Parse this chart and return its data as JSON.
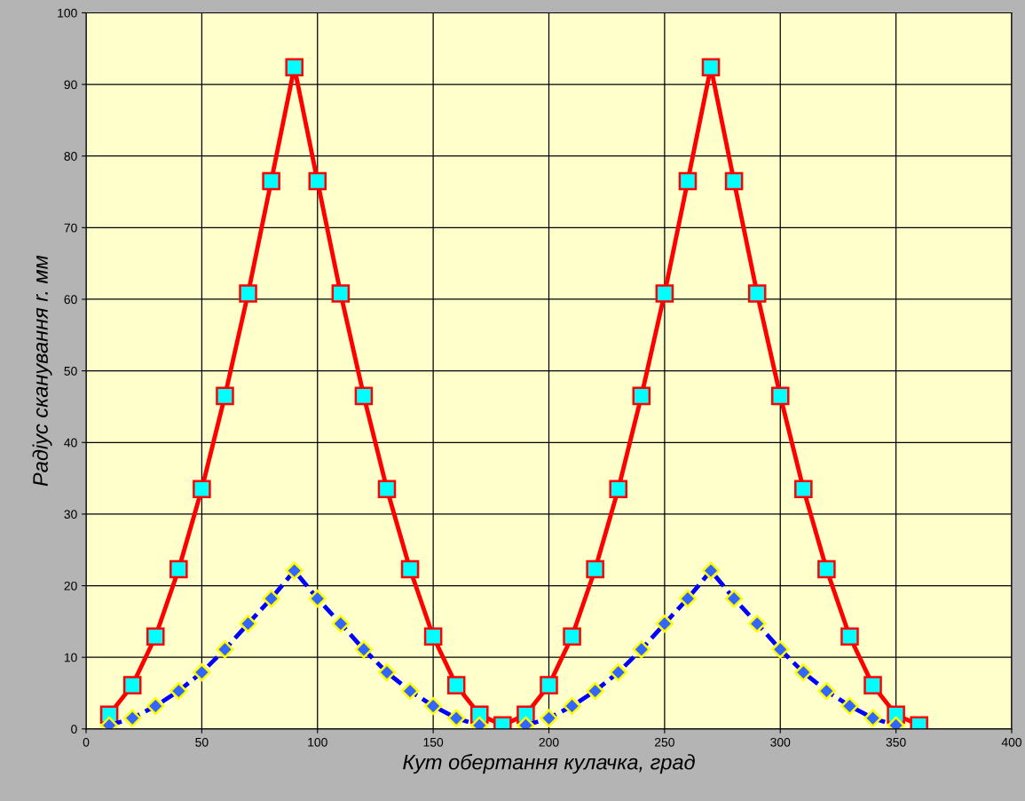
{
  "chart_data": {
    "type": "line",
    "xlabel": "Кут обертання кулачка, град",
    "ylabel": "Радіус сканування r. мм",
    "xlim": [
      0,
      400
    ],
    "xticks": [
      0,
      50,
      100,
      150,
      200,
      250,
      300,
      350,
      400
    ],
    "ylim": [
      0,
      100
    ],
    "yticks": [
      0,
      10,
      20,
      30,
      40,
      50,
      60,
      70,
      80,
      90,
      100
    ],
    "grid": true,
    "legend": false,
    "x": [
      10,
      20,
      30,
      40,
      50,
      60,
      70,
      80,
      90,
      100,
      110,
      120,
      130,
      140,
      150,
      160,
      170,
      180,
      190,
      200,
      210,
      220,
      230,
      240,
      250,
      260,
      270,
      280,
      290,
      300,
      310,
      320,
      330,
      340,
      350,
      360
    ],
    "series": [
      {
        "color": "#ff0000",
        "marker": "square",
        "line_style": "solid",
        "values": [
          2.0,
          6.1,
          12.9,
          22.3,
          33.5,
          46.5,
          60.8,
          76.5,
          92.4,
          76.5,
          60.8,
          46.5,
          33.5,
          22.3,
          12.9,
          6.1,
          2.0,
          0.5,
          2.0,
          6.1,
          12.9,
          22.3,
          33.5,
          46.5,
          60.8,
          76.5,
          92.4,
          76.5,
          60.8,
          46.5,
          33.5,
          22.3,
          12.9,
          6.1,
          2.0,
          0.5
        ]
      },
      {
        "color": "#0000ff",
        "marker": "diamond",
        "line_style": "dashed",
        "values": [
          0.5,
          1.5,
          3.2,
          5.3,
          7.9,
          11.1,
          14.7,
          18.2,
          22.1,
          18.2,
          14.7,
          11.1,
          7.9,
          5.3,
          3.2,
          1.5,
          0.5,
          null,
          0.5,
          1.5,
          3.2,
          5.3,
          7.9,
          11.1,
          14.7,
          18.2,
          22.1,
          18.2,
          14.7,
          11.1,
          7.9,
          5.3,
          3.2,
          1.5,
          0.5,
          null
        ]
      }
    ]
  }
}
